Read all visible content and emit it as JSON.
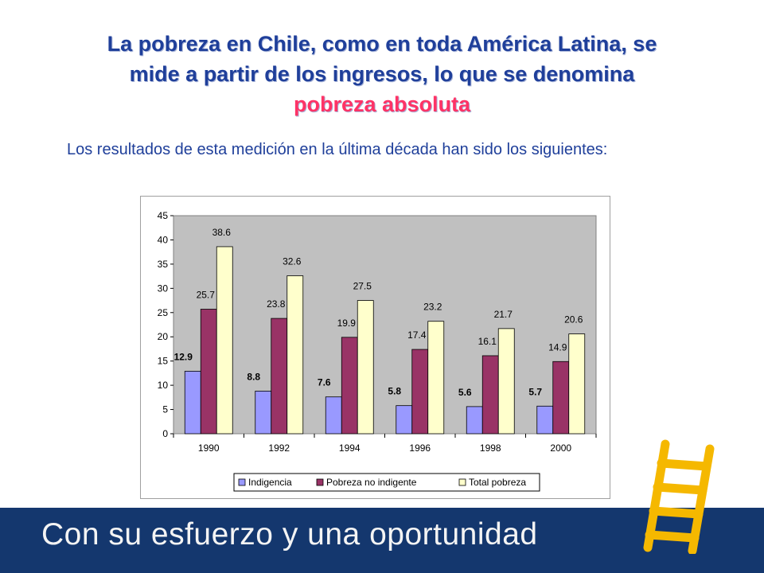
{
  "slide": {
    "title_line1": "La pobreza en Chile, como en toda América Latina, se",
    "title_line2": "mide a partir de los ingresos, lo que se denomina",
    "title_highlight": "pobreza absoluta",
    "subtitle": "Los resultados de esta medición en la última década han sido los siguientes:",
    "footer": "Con su esfuerzo y una oportunidad"
  },
  "colors": {
    "title": "#1f3f9a",
    "highlight": "#ff3366",
    "footer_bg": "#14376e",
    "plot_bg": "#c0c0c0",
    "ladder": "#f5b800"
  },
  "chart_data": {
    "type": "bar",
    "categories": [
      "1990",
      "1992",
      "1994",
      "1996",
      "1998",
      "2000"
    ],
    "series": [
      {
        "name": "Indigencia",
        "values": [
          12.9,
          8.8,
          7.6,
          5.8,
          5.6,
          5.7
        ],
        "color": "#9999ff"
      },
      {
        "name": "Pobreza no indigente",
        "values": [
          25.7,
          23.8,
          19.9,
          17.4,
          16.1,
          14.9
        ],
        "color": "#993366"
      },
      {
        "name": "Total pobreza",
        "values": [
          38.6,
          32.6,
          27.5,
          23.2,
          21.7,
          20.6
        ],
        "color": "#ffffcc"
      }
    ],
    "ylim": [
      0,
      45
    ],
    "yticks": [
      0,
      5,
      10,
      15,
      20,
      25,
      30,
      35,
      40,
      45
    ],
    "grid": false,
    "legend_position": "bottom"
  }
}
